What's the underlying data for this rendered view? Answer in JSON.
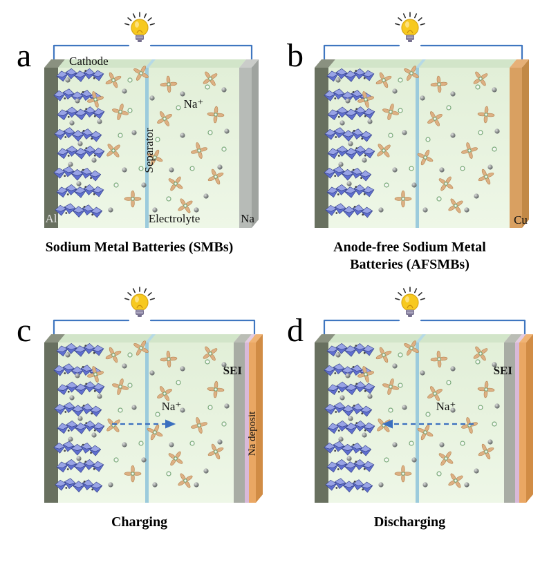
{
  "figure": {
    "panels": {
      "a": {
        "letter": "a",
        "caption": "Sodium Metal Batteries (SMBs)",
        "labels": {
          "cathode": "Cathode",
          "separator": "Separator",
          "electrolyte": "Electrolyte",
          "current_collector": "Al",
          "anode": "Na",
          "ion": "Na⁺"
        }
      },
      "b": {
        "letter": "b",
        "caption_line1": "Anode-free Sodium Metal",
        "caption_line2": "Batteries (AFSMBs)",
        "labels": {
          "current_collector": "Cu"
        }
      },
      "c": {
        "letter": "c",
        "caption": "Charging",
        "labels": {
          "sei": "SEI",
          "deposit": "Na deposit",
          "ion": "Na⁺"
        }
      },
      "d": {
        "letter": "d",
        "caption": "Discharging",
        "labels": {
          "sei": "SEI",
          "ion": "Na⁺"
        }
      }
    },
    "colors": {
      "wire": "#3f76c0",
      "bulb": "#f7c91f",
      "electrolyte": "#e9f4e3",
      "separator": "#9ccbdc",
      "aluminum_electrode": "#68705f",
      "sodium_electrode": "#b7bbb7",
      "copper_electrode": "#d9a061",
      "sei_layer": "#d9b9d8",
      "cathode_crystal": "#5f6fd0",
      "solvated_ion": "#ddb083"
    }
  }
}
